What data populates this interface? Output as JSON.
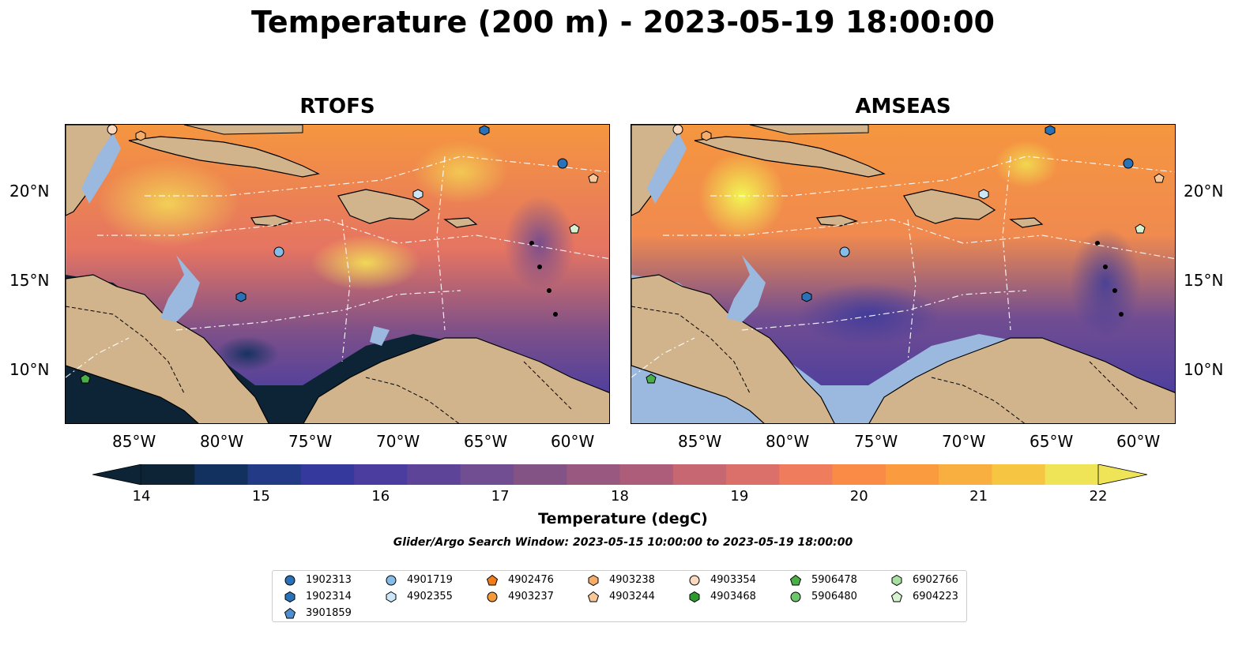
{
  "title": "Temperature (200 m) - 2023-05-19 18:00:00",
  "panels": [
    {
      "title": "RTOFS"
    },
    {
      "title": "AMSEAS"
    }
  ],
  "axes": {
    "lat_labels": [
      "20°N",
      "15°N",
      "10°N"
    ],
    "lon_labels": [
      "85°W",
      "80°W",
      "75°W",
      "70°W",
      "65°W",
      "60°W"
    ]
  },
  "colorbar": {
    "label": "Temperature (degC)",
    "ticks": [
      "14",
      "15",
      "16",
      "17",
      "18",
      "19",
      "20",
      "21",
      "22"
    ],
    "colors": [
      "#0d2436",
      "#13315e",
      "#233a86",
      "#35389d",
      "#4a3d9f",
      "#5e4499",
      "#714d91",
      "#835386",
      "#985880",
      "#ad5d79",
      "#c66772",
      "#db706a",
      "#ef7d5d",
      "#f98b47",
      "#fa9b3f",
      "#f9ae40",
      "#f6c542",
      "#efe458"
    ]
  },
  "search_window": "Glider/Argo Search Window: 2023-05-15 10:00:00 to 2023-05-19 18:00:00",
  "legend": [
    {
      "id": "1902313",
      "shape": "circle",
      "color": "#2a72b8"
    },
    {
      "id": "1902314",
      "shape": "hexagon",
      "color": "#2a72b8"
    },
    {
      "id": "3901859",
      "shape": "pentagon",
      "color": "#4f8ed0"
    },
    {
      "id": "4901719",
      "shape": "circle",
      "color": "#86bde8"
    },
    {
      "id": "4902355",
      "shape": "hexagon",
      "color": "#cde6f7"
    },
    {
      "id": "4902476",
      "shape": "pentagon",
      "color": "#f07d1a"
    },
    {
      "id": "4903237",
      "shape": "circle",
      "color": "#f39a3a"
    },
    {
      "id": "4903238",
      "shape": "hexagon",
      "color": "#f6ad6a"
    },
    {
      "id": "4903244",
      "shape": "pentagon",
      "color": "#f9c899"
    },
    {
      "id": "4903354",
      "shape": "circle",
      "color": "#fbd9bf"
    },
    {
      "id": "4903468",
      "shape": "hexagon",
      "color": "#2e9a2e"
    },
    {
      "id": "5906478",
      "shape": "pentagon",
      "color": "#49b049"
    },
    {
      "id": "5906480",
      "shape": "circle",
      "color": "#6cc76c"
    },
    {
      "id": "6902766",
      "shape": "hexagon",
      "color": "#a8e0a3"
    },
    {
      "id": "6904223",
      "shape": "pentagon",
      "color": "#d6f2d0"
    }
  ]
}
